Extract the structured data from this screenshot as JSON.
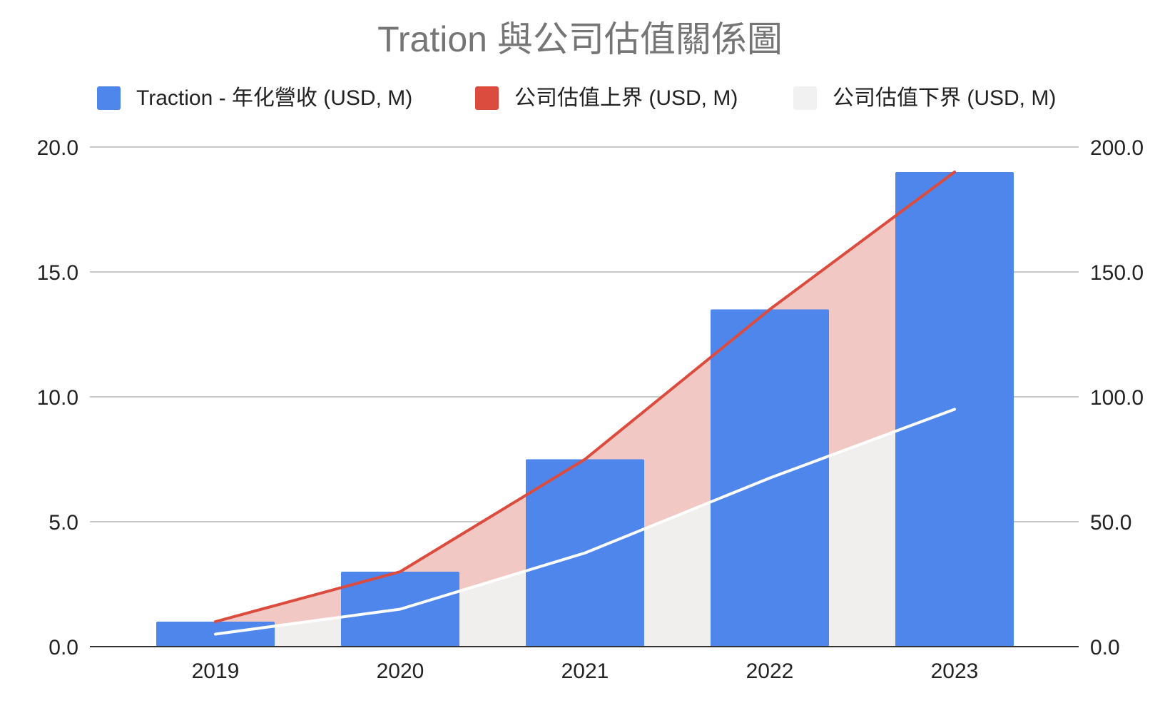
{
  "chart_data": {
    "type": "bar",
    "title": "Tration 與公司估值關係圖",
    "categories": [
      "2019",
      "2020",
      "2021",
      "2022",
      "2023"
    ],
    "series": [
      {
        "name": "Traction - 年化營收 (USD, M)",
        "type": "bar",
        "axis": "left",
        "color": "#4F86EC",
        "values": [
          1.0,
          3.0,
          7.5,
          13.5,
          19.0
        ]
      },
      {
        "name": "公司估值上界 (USD, M)",
        "type": "area",
        "axis": "right",
        "color": "#DB4C3F",
        "fill_color": "#F2C8C4",
        "values": [
          10.0,
          30.0,
          75.0,
          135.0,
          190.0
        ]
      },
      {
        "name": "公司估值下界 (USD, M)",
        "type": "area",
        "axis": "right",
        "color": "#FFFFFF",
        "fill_color": "#F1EEEE",
        "values": [
          5.0,
          15.0,
          37.5,
          67.5,
          95.0
        ]
      }
    ],
    "y_left": {
      "lim": [
        0,
        20
      ],
      "ticks": [
        0,
        5,
        10,
        15,
        20
      ],
      "tick_labels": [
        "0.0",
        "5.0",
        "10.0",
        "15.0",
        "20.0"
      ]
    },
    "y_right": {
      "lim": [
        0,
        200
      ],
      "ticks": [
        0,
        50,
        100,
        150,
        200
      ],
      "tick_labels": [
        "0.0",
        "50.0",
        "100.0",
        "150.0",
        "200.0"
      ]
    },
    "grid": true,
    "legend_position": "top"
  },
  "colors": {
    "grid": "#C8C8C8",
    "baseline": "#333333",
    "legend_lower_swatch": "#F1F1F1"
  }
}
